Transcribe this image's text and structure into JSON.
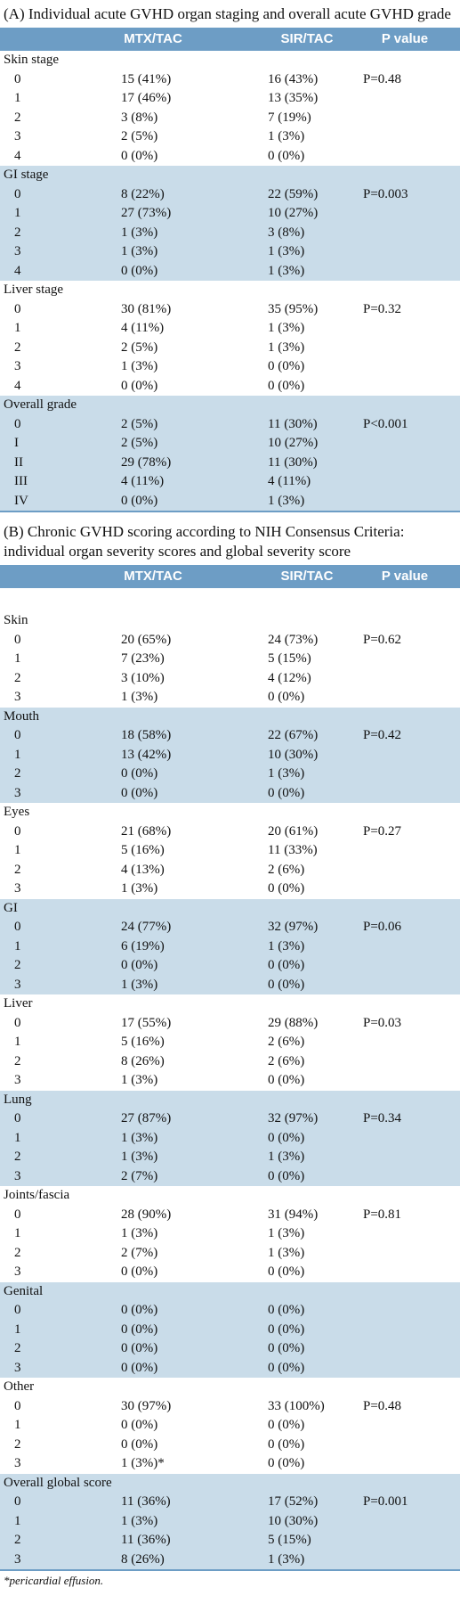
{
  "sections": [
    {
      "title": "(A) Individual acute GVHD organ staging and overall acute GVHD grade",
      "columns": [
        "MTX/TAC",
        "SIR/TAC",
        "P value"
      ],
      "groups": [
        {
          "label": "Skin stage",
          "p": "P=0.48",
          "rows": [
            [
              "0",
              "15 (41%)",
              "16 (43%)"
            ],
            [
              "1",
              "17 (46%)",
              "13 (35%)"
            ],
            [
              "2",
              "3 (8%)",
              "7 (19%)"
            ],
            [
              "3",
              "2 (5%)",
              "1 (3%)"
            ],
            [
              "4",
              "0 (0%)",
              "0 (0%)"
            ]
          ]
        },
        {
          "label": "GI stage",
          "p": "P=0.003",
          "rows": [
            [
              "0",
              "8 (22%)",
              "22 (59%)"
            ],
            [
              "1",
              "27 (73%)",
              "10 (27%)"
            ],
            [
              "2",
              "1 (3%)",
              "3 (8%)"
            ],
            [
              "3",
              "1 (3%)",
              "1 (3%)"
            ],
            [
              "4",
              "0 (0%)",
              "1 (3%)"
            ]
          ]
        },
        {
          "label": "Liver stage",
          "p": "P=0.32",
          "rows": [
            [
              "0",
              "30 (81%)",
              "35 (95%)"
            ],
            [
              "1",
              "4 (11%)",
              "1 (3%)"
            ],
            [
              "2",
              "2 (5%)",
              "1 (3%)"
            ],
            [
              "3",
              "1 (3%)",
              "0 (0%)"
            ],
            [
              "4",
              "0 (0%)",
              "0 (0%)"
            ]
          ]
        },
        {
          "label": "Overall grade",
          "p": "P<0.001",
          "rows": [
            [
              "0",
              "2 (5%)",
              "11 (30%)"
            ],
            [
              "I",
              "2 (5%)",
              "10 (27%)"
            ],
            [
              "II",
              "29 (78%)",
              "11 (30%)"
            ],
            [
              "III",
              "4 (11%)",
              "4 (11%)"
            ],
            [
              "IV",
              "0 (0%)",
              "1 (3%)"
            ]
          ]
        }
      ]
    },
    {
      "title": "(B) Chronic GVHD scoring according to NIH Consensus Criteria: individual organ severity scores and global severity score",
      "columns": [
        "MTX/TAC",
        "SIR/TAC",
        "P value"
      ],
      "groups": [
        {
          "label": "Skin",
          "p": "P=0.62",
          "rows": [
            [
              "0",
              "20 (65%)",
              "24 (73%)"
            ],
            [
              "1",
              "7 (23%)",
              "5 (15%)"
            ],
            [
              "2",
              "3 (10%)",
              "4 (12%)"
            ],
            [
              "3",
              "1 (3%)",
              "0 (0%)"
            ]
          ]
        },
        {
          "label": "Mouth",
          "p": "P=0.42",
          "rows": [
            [
              "0",
              "18 (58%)",
              "22 (67%)"
            ],
            [
              "1",
              "13 (42%)",
              "10 (30%)"
            ],
            [
              "2",
              "0 (0%)",
              "1 (3%)"
            ],
            [
              "3",
              "0 (0%)",
              "0 (0%)"
            ]
          ]
        },
        {
          "label": "Eyes",
          "p": "P=0.27",
          "rows": [
            [
              "0",
              "21 (68%)",
              "20 (61%)"
            ],
            [
              "1",
              "5 (16%)",
              "11 (33%)"
            ],
            [
              "2",
              "4 (13%)",
              "2 (6%)"
            ],
            [
              "3",
              "1 (3%)",
              "0 (0%)"
            ]
          ]
        },
        {
          "label": "GI",
          "p": "P=0.06",
          "rows": [
            [
              "0",
              "24 (77%)",
              "32 (97%)"
            ],
            [
              "1",
              "6 (19%)",
              "1 (3%)"
            ],
            [
              "2",
              "0 (0%)",
              "0 (0%)"
            ],
            [
              "3",
              "1 (3%)",
              "0 (0%)"
            ]
          ]
        },
        {
          "label": "Liver",
          "p": "P=0.03",
          "rows": [
            [
              "0",
              "17 (55%)",
              "29 (88%)"
            ],
            [
              "1",
              "5 (16%)",
              "2 (6%)"
            ],
            [
              "2",
              "8 (26%)",
              "2 (6%)"
            ],
            [
              "3",
              "1 (3%)",
              "0 (0%)"
            ]
          ]
        },
        {
          "label": "Lung",
          "p": "P=0.34",
          "rows": [
            [
              "0",
              "27 (87%)",
              "32 (97%)"
            ],
            [
              "1",
              "1 (3%)",
              "0 (0%)"
            ],
            [
              "2",
              "1 (3%)",
              "1 (3%)"
            ],
            [
              "3",
              "2 (7%)",
              "0 (0%)"
            ]
          ]
        },
        {
          "label": "Joints/fascia",
          "p": "P=0.81",
          "rows": [
            [
              "0",
              "28 (90%)",
              "31 (94%)"
            ],
            [
              "1",
              "1 (3%)",
              "1 (3%)"
            ],
            [
              "2",
              "2 (7%)",
              "1 (3%)"
            ],
            [
              "3",
              "0 (0%)",
              "0 (0%)"
            ]
          ]
        },
        {
          "label": "Genital",
          "rows": [
            [
              "0",
              "0 (0%)",
              "0 (0%)"
            ],
            [
              "1",
              "0 (0%)",
              "0 (0%)"
            ],
            [
              "2",
              "0 (0%)",
              "0 (0%)"
            ],
            [
              "3",
              "0 (0%)",
              "0 (0%)"
            ]
          ]
        },
        {
          "label": "Other",
          "p": "P=0.48",
          "rows": [
            [
              "0",
              "30 (97%)",
              "33 (100%)"
            ],
            [
              "1",
              "0 (0%)",
              "0 (0%)"
            ],
            [
              "2",
              "0 (0%)",
              "0 (0%)"
            ],
            [
              "3",
              "1 (3%)*",
              "0 (0%)"
            ]
          ]
        },
        {
          "label": "Overall global score",
          "p": "P=0.001",
          "rows": [
            [
              "0",
              "11 (36%)",
              "17 (52%)"
            ],
            [
              "1",
              "1 (3%)",
              "10 (30%)"
            ],
            [
              "2",
              "11 (36%)",
              "5 (15%)"
            ],
            [
              "3",
              "8 (26%)",
              "1 (3%)"
            ]
          ]
        }
      ]
    }
  ],
  "footnote": "*pericardial effusion."
}
